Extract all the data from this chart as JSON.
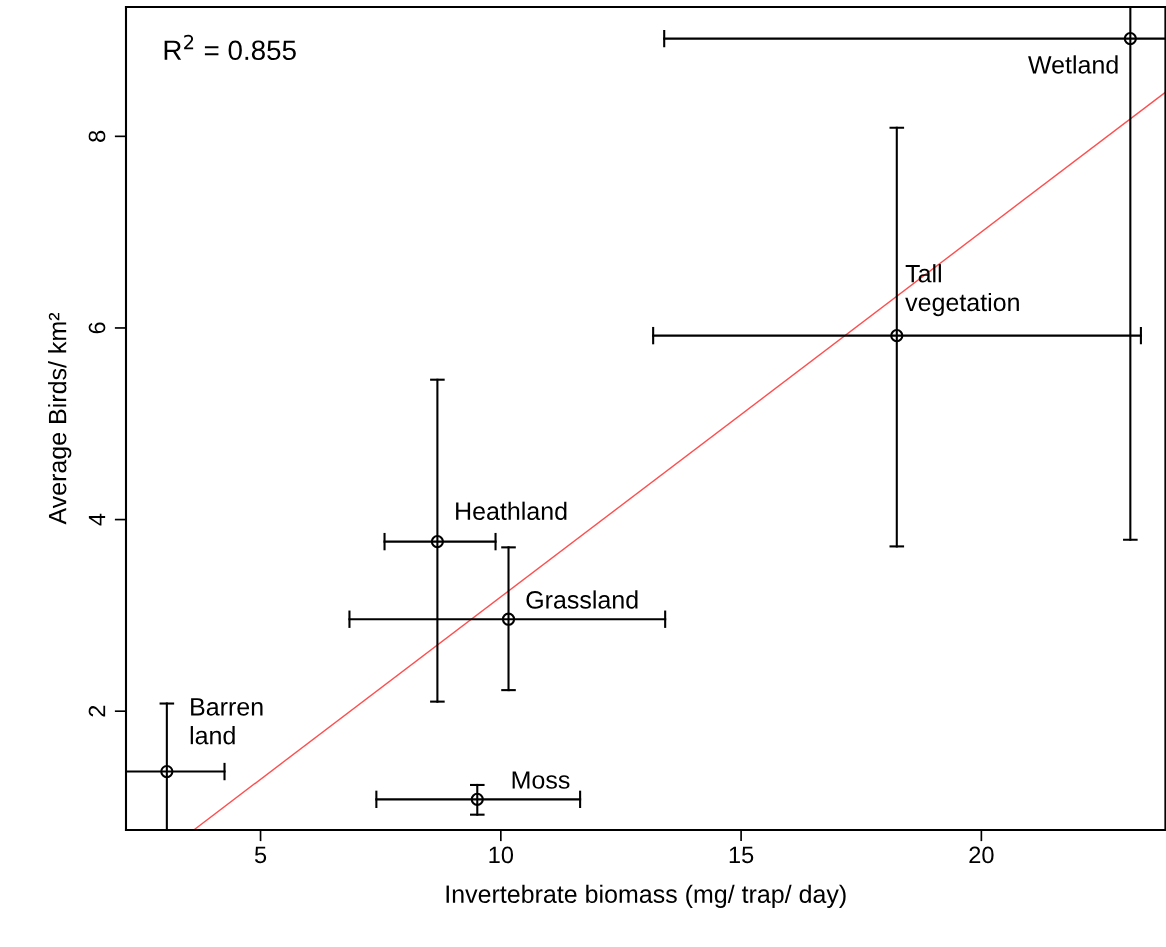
{
  "chart_data": {
    "type": "scatter",
    "xlabel": "Invertebrate biomass (mg/ trap/ day)",
    "ylabel": "Average Birds/ km²",
    "x": [
      23.1,
      18.24,
      8.68,
      10.16,
      3.05,
      9.51
    ],
    "series": [
      {
        "color": "#000000",
        "marker": "circle",
        "values": [
          9.02,
          5.92,
          3.77,
          2.96,
          1.37,
          1.08
        ],
        "errors": [
          [
            3.79,
            9.35
          ],
          [
            3.72,
            8.09
          ],
          [
            2.1,
            5.46
          ],
          [
            2.22,
            3.71
          ],
          [
            0.76,
            2.08
          ],
          [
            0.92,
            1.23
          ]
        ],
        "xerrors": [
          [
            13.4,
            23.83
          ],
          [
            13.17,
            23.32
          ],
          [
            7.58,
            9.89
          ],
          [
            6.85,
            13.42
          ],
          [
            2.2,
            4.25
          ],
          [
            7.41,
            11.65
          ]
        ]
      },
      {
        "type": "line",
        "color": "#ff4d4d",
        "x": [
          3.61,
          23.83
        ],
        "values": [
          0.76,
          8.46
        ]
      }
    ],
    "grid": false,
    "legend": false,
    "xlim": [
      2.2,
      23.83
    ],
    "ylim": [
      0.76,
      9.35
    ],
    "xticks": [
      5,
      10,
      15,
      20
    ],
    "yticks": [
      2,
      4,
      6,
      8
    ],
    "annotations": [
      "R$^{2}$ = 0.855",
      {
        "text": "Wetland",
        "x": 23.1,
        "y": 9.02
      },
      {
        "text": "Tall\nvegetation",
        "x": 18.24,
        "y": 5.92
      },
      {
        "text": "Heathland",
        "x": 8.68,
        "y": 3.77
      },
      {
        "text": "Grassland",
        "x": 10.16,
        "y": 2.96
      },
      {
        "text": "Barren\nland",
        "x": 3.05,
        "y": 1.37
      },
      {
        "text": "Moss",
        "x": 9.51,
        "y": 1.08
      }
    ]
  }
}
